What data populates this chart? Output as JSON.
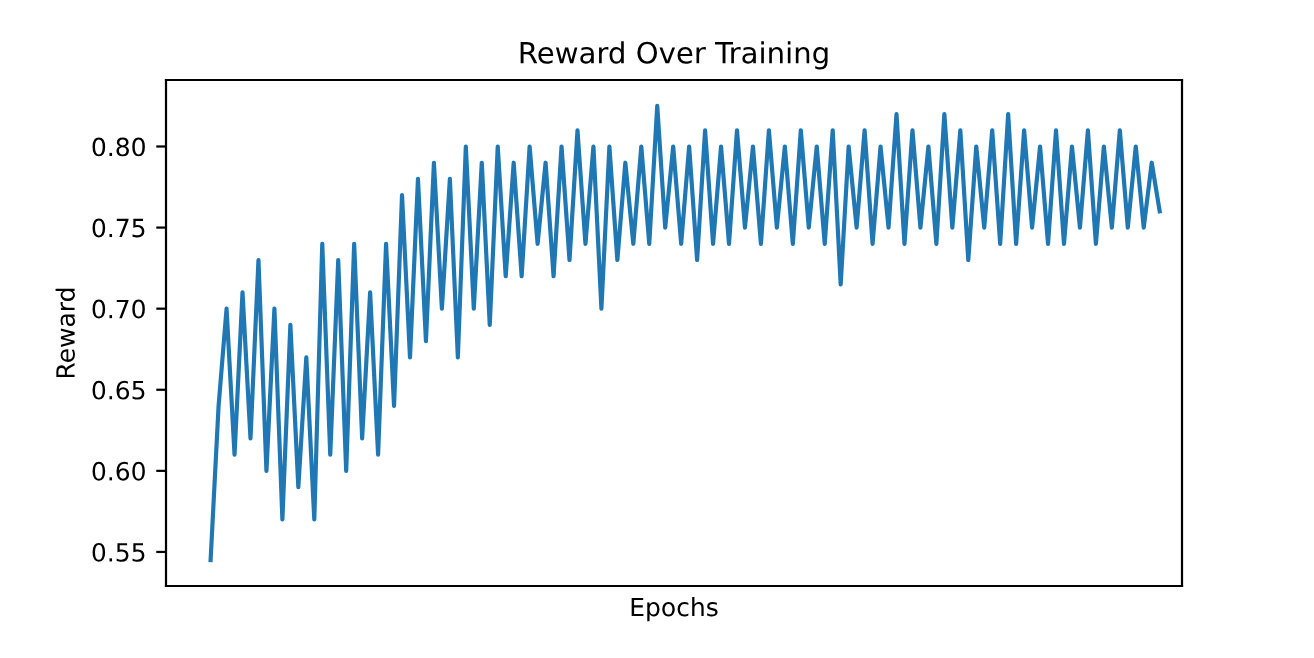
{
  "chart_data": {
    "type": "line",
    "title": "Reward Over Training",
    "xlabel": "Epochs",
    "ylabel": "Reward",
    "categories": [
      null,
      null,
      null,
      null,
      null,
      null,
      null,
      null,
      null,
      null,
      null,
      null,
      null,
      null,
      null,
      null,
      null,
      null,
      null,
      null,
      null,
      null,
      null,
      null,
      null,
      null,
      null,
      null,
      null,
      null,
      null,
      null,
      null,
      null,
      null,
      null,
      null,
      null,
      null,
      null,
      null,
      null,
      null,
      null,
      null,
      null,
      null,
      null,
      null,
      null,
      null,
      null,
      null,
      null,
      null,
      null,
      null,
      null,
      null,
      null,
      null,
      null,
      null,
      null,
      null,
      null,
      null,
      null,
      null,
      null,
      null,
      null,
      null,
      null,
      null,
      null,
      null,
      null,
      null,
      null,
      null,
      null,
      null,
      null,
      null,
      null,
      null,
      null,
      null,
      null,
      null,
      null,
      null,
      null,
      null,
      null,
      null,
      null,
      null,
      null,
      null,
      null,
      null,
      null,
      null,
      null,
      null,
      null,
      null,
      null,
      null,
      null,
      null,
      null,
      null,
      null,
      null,
      null,
      null,
      null
    ],
    "series": [
      {
        "color": "#1f77b4",
        "values": [
          0.545,
          0.64,
          0.7,
          0.61,
          0.71,
          0.62,
          0.73,
          0.6,
          0.7,
          0.57,
          0.69,
          0.59,
          0.67,
          0.57,
          0.74,
          0.61,
          0.73,
          0.6,
          0.74,
          0.62,
          0.71,
          0.61,
          0.74,
          0.64,
          0.77,
          0.67,
          0.78,
          0.68,
          0.79,
          0.7,
          0.78,
          0.67,
          0.8,
          0.7,
          0.79,
          0.69,
          0.8,
          0.72,
          0.79,
          0.72,
          0.8,
          0.74,
          0.79,
          0.72,
          0.8,
          0.73,
          0.81,
          0.74,
          0.8,
          0.7,
          0.8,
          0.73,
          0.79,
          0.74,
          0.8,
          0.74,
          0.825,
          0.75,
          0.8,
          0.74,
          0.8,
          0.73,
          0.81,
          0.74,
          0.8,
          0.74,
          0.81,
          0.75,
          0.8,
          0.74,
          0.81,
          0.75,
          0.8,
          0.74,
          0.81,
          0.75,
          0.8,
          0.74,
          0.81,
          0.715,
          0.8,
          0.75,
          0.81,
          0.74,
          0.8,
          0.75,
          0.82,
          0.74,
          0.81,
          0.75,
          0.8,
          0.74,
          0.82,
          0.75,
          0.81,
          0.73,
          0.8,
          0.75,
          0.81,
          0.74,
          0.82,
          0.74,
          0.81,
          0.75,
          0.8,
          0.74,
          0.81,
          0.74,
          0.8,
          0.75,
          0.81,
          0.74,
          0.8,
          0.75,
          0.81,
          0.75,
          0.8,
          0.75,
          0.79,
          0.76
        ]
      }
    ],
    "ylim": [
      0.529,
      0.841
    ],
    "yticks": [
      {
        "value": 0.55,
        "label": "0.55"
      },
      {
        "value": 0.6,
        "label": "0.60"
      },
      {
        "value": 0.65,
        "label": "0.65"
      },
      {
        "value": 0.7,
        "label": "0.70"
      },
      {
        "value": 0.75,
        "label": "0.75"
      },
      {
        "value": 0.8,
        "label": "0.80"
      }
    ],
    "tick_labels": "y",
    "grid": false,
    "legend": false
  }
}
